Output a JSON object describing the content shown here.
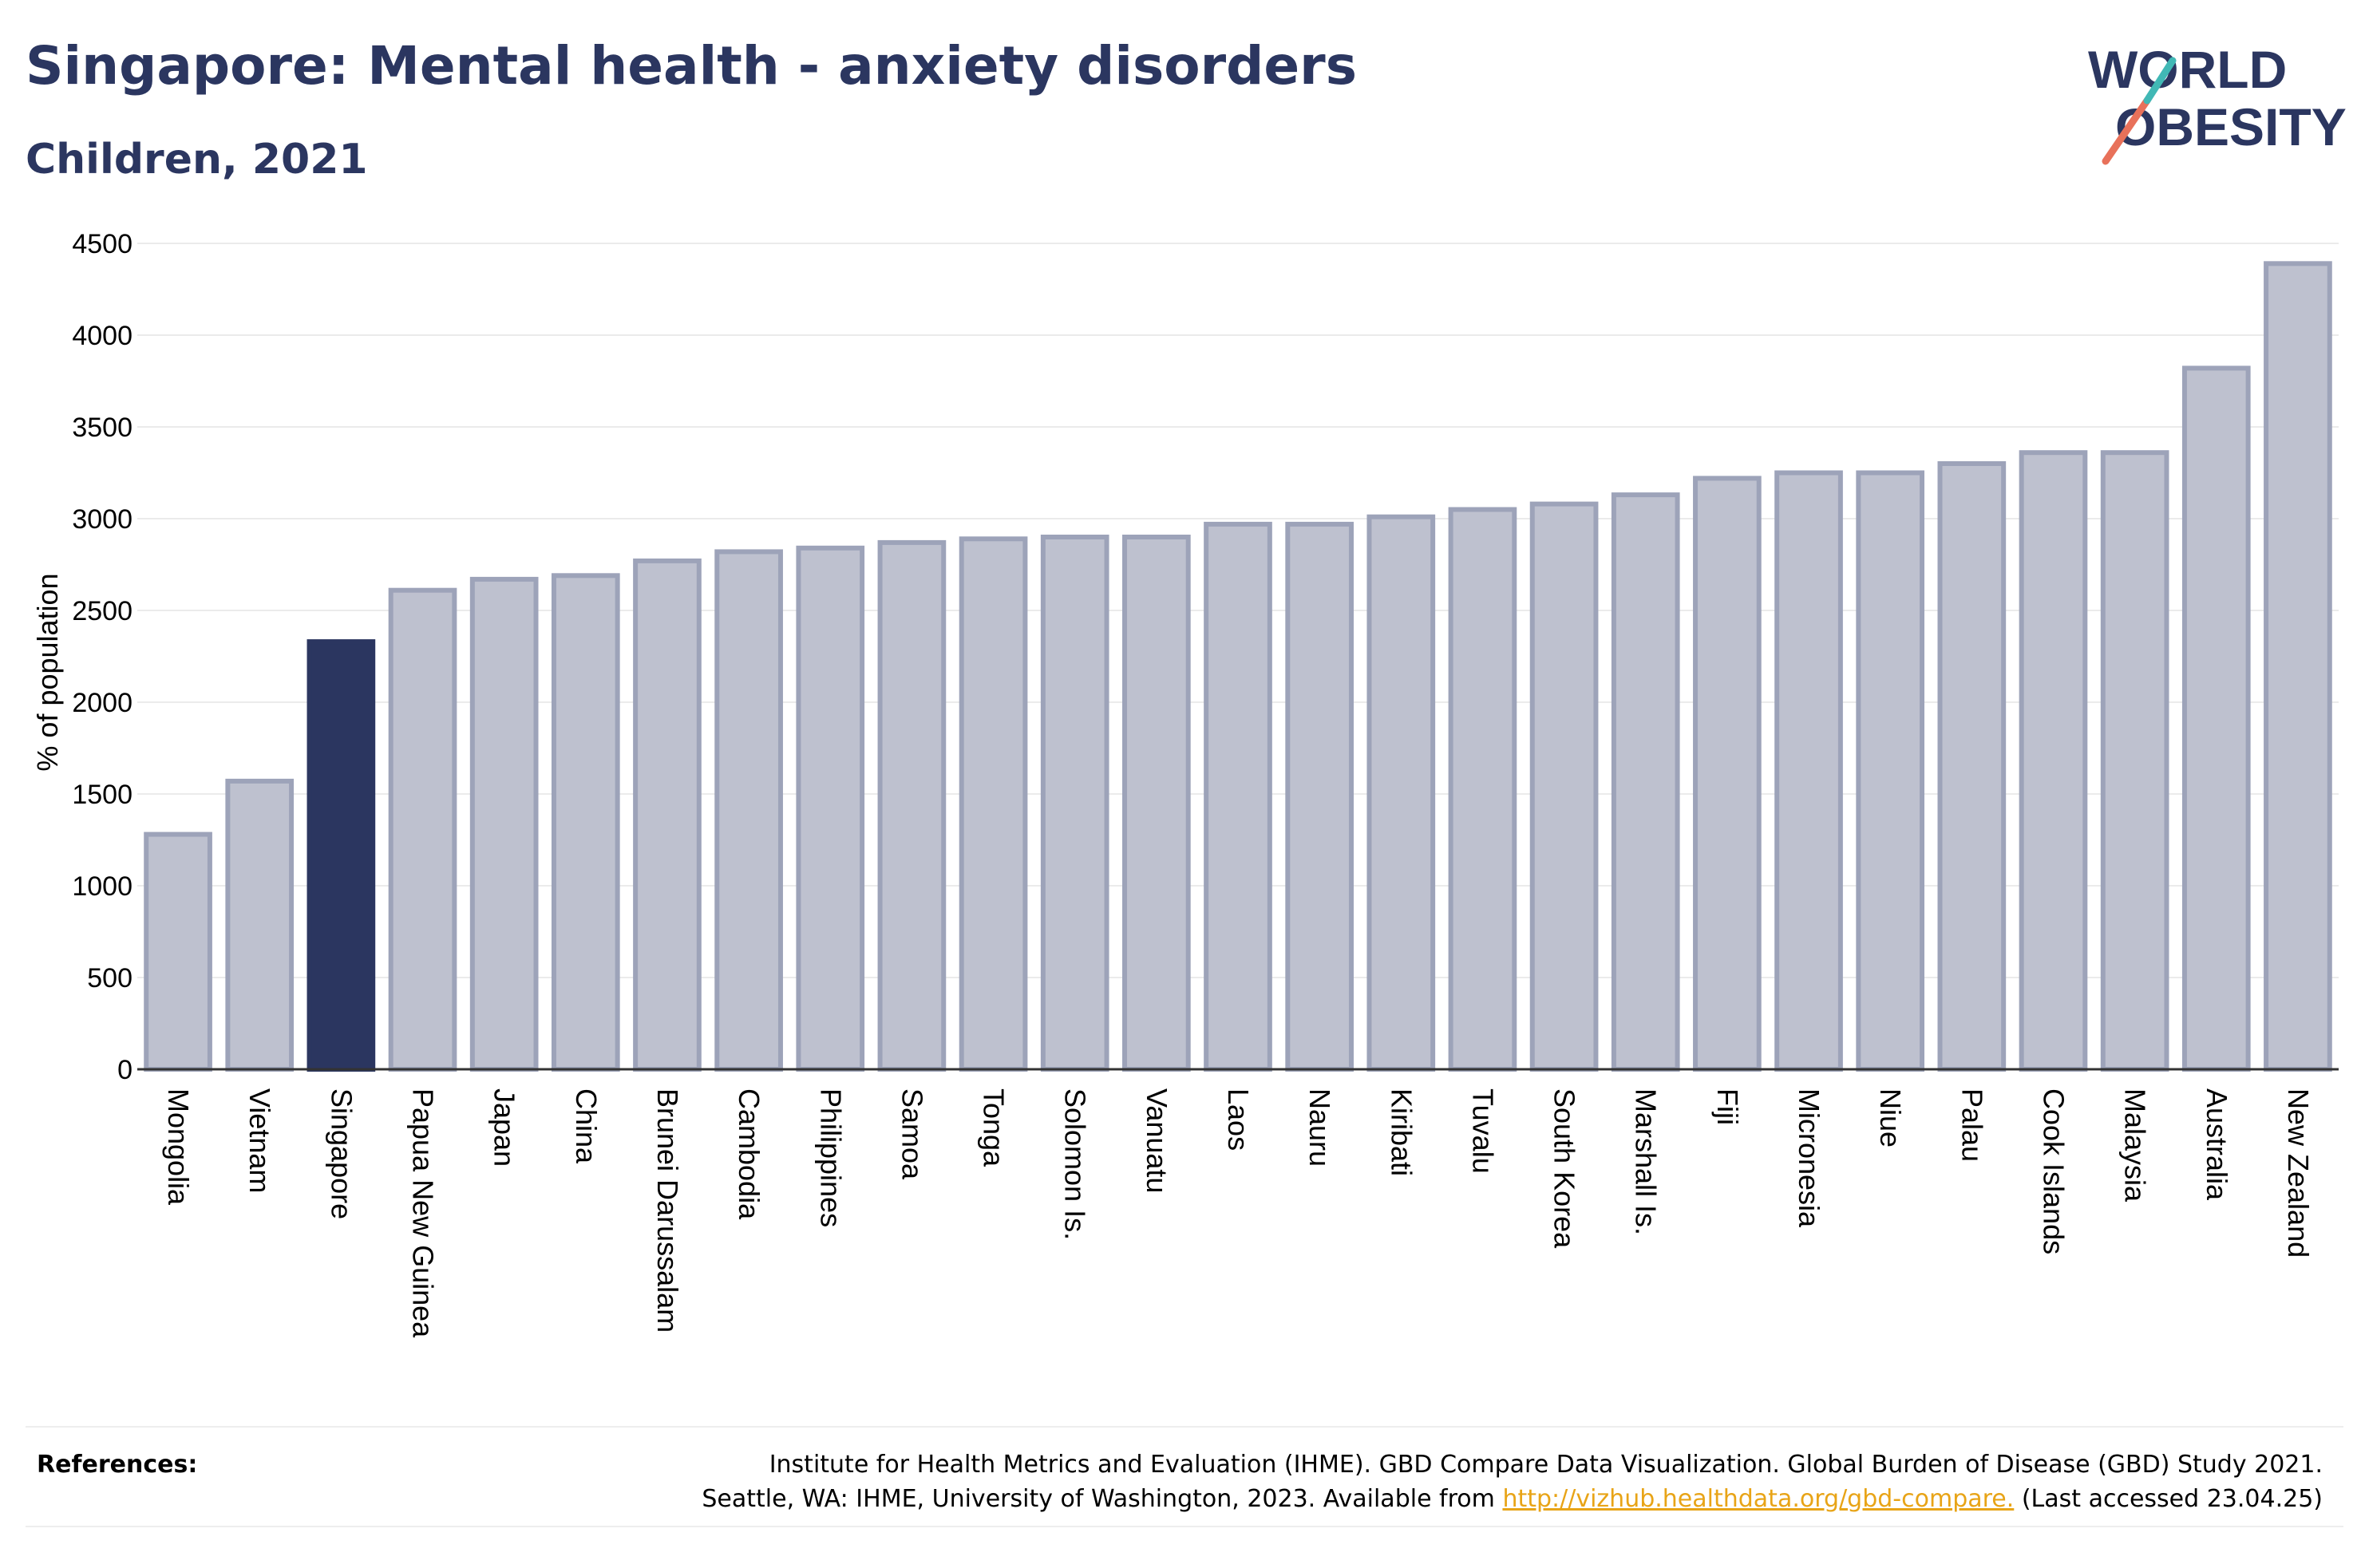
{
  "title": "Singapore: Mental health - anxiety disorders",
  "subtitle": "Children, 2021",
  "logo": {
    "line1": "WORLD",
    "line2": "OBESITY",
    "color": "#2b3660",
    "slash_colors": [
      "#e8715a",
      "#41b8b5"
    ]
  },
  "colors": {
    "highlight": "#2b3660",
    "bar_fill": "#bec1cf",
    "bar_stroke": "#9da3b9",
    "grid": "#ebebeb",
    "axis": "#333333",
    "link": "#e8a417"
  },
  "chart_data": {
    "type": "bar",
    "title": "Singapore: Mental health - anxiety disorders",
    "subtitle": "Children, 2021",
    "xlabel": "",
    "ylabel": "% of population",
    "ylim": [
      0,
      4500
    ],
    "yticks": [
      0,
      500,
      1000,
      1500,
      2000,
      2500,
      3000,
      3500,
      4000,
      4500
    ],
    "grid": true,
    "highlight": "Singapore",
    "categories": [
      "Mongolia",
      "Vietnam",
      "Singapore",
      "Papua New Guinea",
      "Japan",
      "China",
      "Brunei Darussalam",
      "Cambodia",
      "Philippines",
      "Samoa",
      "Tonga",
      "Solomon Is.",
      "Vanuatu",
      "Laos",
      "Nauru",
      "Kiribati",
      "Tuvalu",
      "South Korea",
      "Marshall Is.",
      "Fiji",
      "Micronesia",
      "Niue",
      "Palau",
      "Cook Islands",
      "Malaysia",
      "Australia",
      "New Zealand"
    ],
    "values": [
      1280,
      1570,
      2330,
      2610,
      2670,
      2690,
      2770,
      2820,
      2840,
      2870,
      2890,
      2900,
      2900,
      2970,
      2970,
      3010,
      3050,
      3080,
      3130,
      3220,
      3250,
      3250,
      3300,
      3360,
      3360,
      3820,
      4390
    ]
  },
  "references": {
    "label": "References:",
    "line1": "Institute for Health Metrics and Evaluation (IHME). GBD Compare Data Visualization. Global Burden of Disease (GBD) Study 2021.",
    "line2_prefix": "Seattle, WA: IHME, University of Washington, 2023. Available from",
    "link": "http://vizhub.healthdata.org/gbd-compare.",
    "line2_suffix": "(Last accessed 23.04.25)"
  }
}
